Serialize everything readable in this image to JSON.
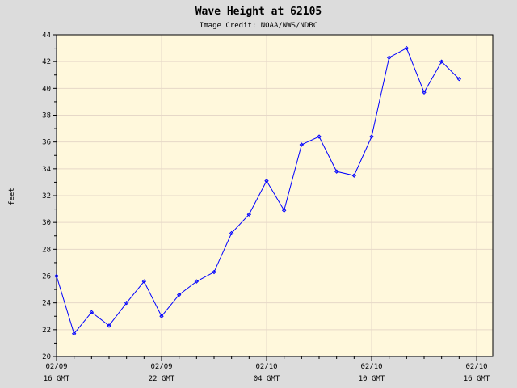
{
  "chart_data": {
    "type": "line",
    "title": "Wave Height at 62105",
    "subtitle": "Image Credit: NOAA/NWS/NDBC",
    "xlabel": "",
    "ylabel": "feet",
    "ylim": [
      20,
      44
    ],
    "yticks": [
      20,
      22,
      24,
      26,
      28,
      30,
      32,
      34,
      36,
      38,
      40,
      42,
      44
    ],
    "xlim": [
      0,
      48
    ],
    "xticks": [
      {
        "x": 0,
        "line1": "02/09",
        "line2": "16 GMT"
      },
      {
        "x": 12,
        "line1": "02/09",
        "line2": "22 GMT"
      },
      {
        "x": 24,
        "line1": "02/10",
        "line2": "04 GMT"
      },
      {
        "x": 36,
        "line1": "02/10",
        "line2": "10 GMT"
      },
      {
        "x": 48,
        "line1": "02/10",
        "line2": "16 GMT"
      }
    ],
    "grid": true,
    "colors": {
      "plot_bg": "#fff8dc",
      "outer_bg": "#dcdcdc",
      "series": "#0000ff",
      "grid": "#e6d8c8"
    },
    "series": [
      {
        "x": [
          0,
          2,
          4,
          6,
          8,
          10,
          12,
          14,
          16,
          18,
          20,
          22,
          24,
          26,
          28,
          30,
          32,
          34,
          36,
          38,
          40,
          42,
          44,
          46
        ],
        "values": [
          26.0,
          21.7,
          23.3,
          22.3,
          24.0,
          25.6,
          23.0,
          24.6,
          25.6,
          26.3,
          29.2,
          30.6,
          33.1,
          30.9,
          35.8,
          36.4,
          33.8,
          33.5,
          36.4,
          42.3,
          43.0,
          39.7,
          42.0,
          40.7
        ]
      }
    ]
  }
}
